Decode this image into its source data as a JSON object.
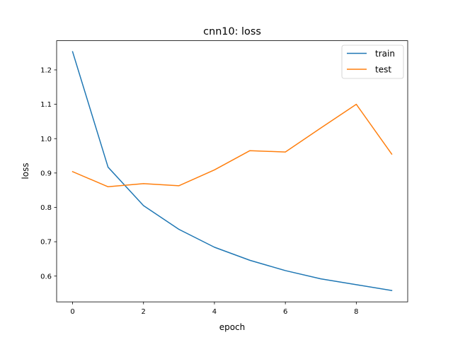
{
  "chart_data": {
    "type": "line",
    "title": "cnn10: loss",
    "xlabel": "epoch",
    "ylabel": "loss",
    "xlim": [
      -0.45,
      9.45
    ],
    "ylim": [
      0.525,
      1.285
    ],
    "xticks": [
      0,
      2,
      4,
      6,
      8
    ],
    "yticks": [
      0.6,
      0.7,
      0.8,
      0.9,
      1.0,
      1.1,
      1.2
    ],
    "grid": false,
    "legend_position": "top-right",
    "x": [
      0,
      1,
      2,
      3,
      4,
      5,
      6,
      7,
      8,
      9
    ],
    "series": [
      {
        "name": "train",
        "color": "#1f77b4",
        "values": [
          1.253,
          0.917,
          0.805,
          0.736,
          0.684,
          0.646,
          0.616,
          0.592,
          0.575,
          0.558
        ]
      },
      {
        "name": "test",
        "color": "#ff7f0e",
        "values": [
          0.904,
          0.86,
          0.869,
          0.863,
          0.909,
          0.965,
          0.961,
          1.031,
          1.1,
          0.955
        ]
      }
    ]
  }
}
